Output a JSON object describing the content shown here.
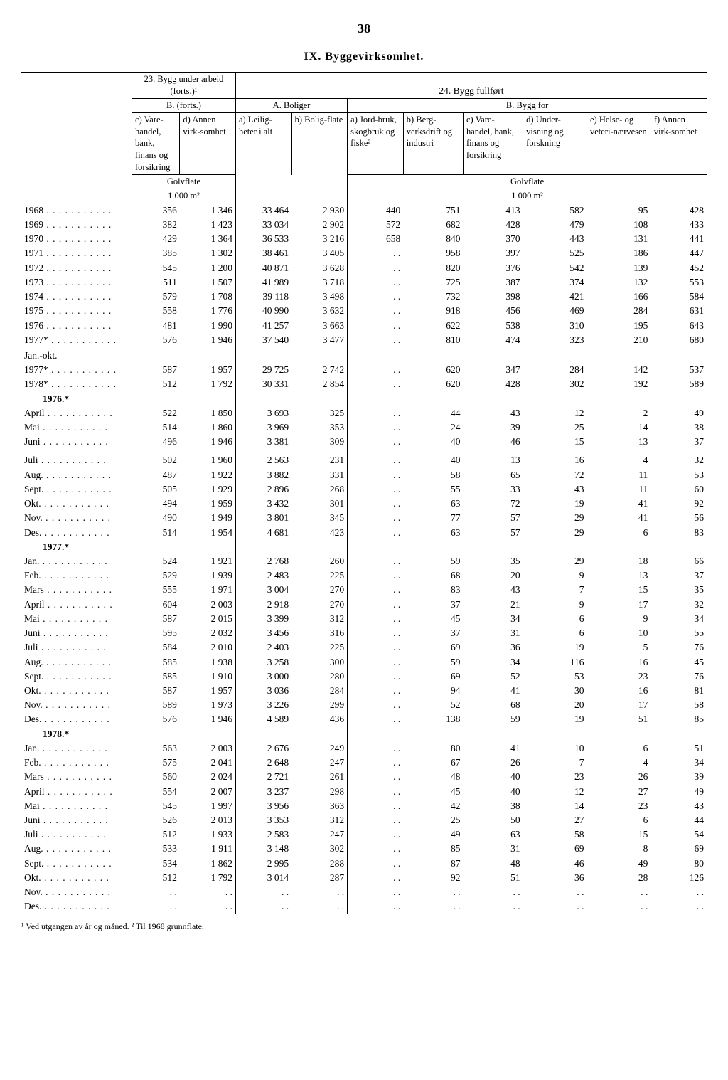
{
  "page_number": "38",
  "chapter_title": "IX. Byggevirksomhet.",
  "header_23": "23. Bygg under arbeid (forts.)¹",
  "header_24": "24. Bygg fullført",
  "header_B_forts": "B. (forts.)",
  "header_A_boliger": "A. Boliger",
  "header_B_byggfor": "B. Bygg for",
  "col_c": "c) Vare-handel, bank, finans og forsikring",
  "col_d": "d) Annen virk-somhet",
  "col_a1": "a) Leilig-heter i alt",
  "col_b1": "b) Bolig-flate",
  "col_a2": "a) Jord-bruk, skogbruk og fiske²",
  "col_b2": "b) Berg-verksdrift og industri",
  "col_c2": "c) Vare-handel, bank, finans og forsikring",
  "col_d2": "d) Under-visning og forskning",
  "col_e2": "e) Helse- og veteri-nærvesen",
  "col_f2": "f) Annen virk-somhet",
  "unit_golvflate": "Golvflate",
  "unit_m2_left": "1 000 m²",
  "unit_m2_right": "1 000 m²",
  "footnote_text": "¹ Ved utgangen av år og måned. ² Til 1968 grunnflate.",
  "rows": [
    {
      "label": "1968",
      "d": [
        "356",
        "1 346",
        "33 464",
        "2 930",
        "440",
        "751",
        "413",
        "582",
        "95",
        "428"
      ]
    },
    {
      "label": "1969",
      "d": [
        "382",
        "1 423",
        "33 034",
        "2 902",
        "572",
        "682",
        "428",
        "479",
        "108",
        "433"
      ]
    },
    {
      "label": "1970",
      "d": [
        "429",
        "1 364",
        "36 533",
        "3 216",
        "658",
        "840",
        "370",
        "443",
        "131",
        "441"
      ]
    },
    {
      "label": "1971",
      "d": [
        "385",
        "1 302",
        "38 461",
        "3 405",
        ". .",
        "958",
        "397",
        "525",
        "186",
        "447"
      ]
    },
    {
      "label": "1972",
      "d": [
        "545",
        "1 200",
        "40 871",
        "3 628",
        ". .",
        "820",
        "376",
        "542",
        "139",
        "452"
      ]
    },
    {
      "label": "1973",
      "d": [
        "511",
        "1 507",
        "41 989",
        "3 718",
        ". .",
        "725",
        "387",
        "374",
        "132",
        "553"
      ]
    },
    {
      "label": "1974",
      "d": [
        "579",
        "1 708",
        "39 118",
        "3 498",
        ". .",
        "732",
        "398",
        "421",
        "166",
        "584"
      ]
    },
    {
      "label": "1975",
      "d": [
        "558",
        "1 776",
        "40 990",
        "3 632",
        ". .",
        "918",
        "456",
        "469",
        "284",
        "631"
      ]
    },
    {
      "label": "1976",
      "d": [
        "481",
        "1 990",
        "41 257",
        "3 663",
        ". .",
        "622",
        "538",
        "310",
        "195",
        "643"
      ]
    },
    {
      "label": "1977*",
      "d": [
        "576",
        "1 946",
        "37 540",
        "3 477",
        ". .",
        "810",
        "474",
        "323",
        "210",
        "680"
      ]
    }
  ],
  "janokt_label": "Jan.-okt.",
  "janokt": [
    {
      "label": "1977*",
      "d": [
        "587",
        "1 957",
        "29 725",
        "2 742",
        ". .",
        "620",
        "347",
        "284",
        "142",
        "537"
      ]
    },
    {
      "label": "1978*",
      "d": [
        "512",
        "1 792",
        "30 331",
        "2 854",
        ". .",
        "620",
        "428",
        "302",
        "192",
        "589"
      ]
    }
  ],
  "y1976_label": "1976.*",
  "y1976": [
    {
      "label": "April",
      "d": [
        "522",
        "1 850",
        "3 693",
        "325",
        ". .",
        "44",
        "43",
        "12",
        "2",
        "49"
      ]
    },
    {
      "label": "Mai",
      "d": [
        "514",
        "1 860",
        "3 969",
        "353",
        ". .",
        "24",
        "39",
        "25",
        "14",
        "38"
      ]
    },
    {
      "label": "Juni",
      "d": [
        "496",
        "1 946",
        "3 381",
        "309",
        ". .",
        "40",
        "46",
        "15",
        "13",
        "37"
      ]
    }
  ],
  "y1976b": [
    {
      "label": "Juli",
      "d": [
        "502",
        "1 960",
        "2 563",
        "231",
        ". .",
        "40",
        "13",
        "16",
        "4",
        "32"
      ]
    },
    {
      "label": "Aug.",
      "d": [
        "487",
        "1 922",
        "3 882",
        "331",
        ". .",
        "58",
        "65",
        "72",
        "11",
        "53"
      ]
    },
    {
      "label": "Sept.",
      "d": [
        "505",
        "1 929",
        "2 896",
        "268",
        ". .",
        "55",
        "33",
        "43",
        "11",
        "60"
      ]
    },
    {
      "label": "Okt.",
      "d": [
        "494",
        "1 959",
        "3 432",
        "301",
        ". .",
        "63",
        "72",
        "19",
        "41",
        "92"
      ]
    },
    {
      "label": "Nov.",
      "d": [
        "490",
        "1 949",
        "3 801",
        "345",
        ". .",
        "77",
        "57",
        "29",
        "41",
        "56"
      ]
    },
    {
      "label": "Des.",
      "d": [
        "514",
        "1 954",
        "4 681",
        "423",
        ". .",
        "63",
        "57",
        "29",
        "6",
        "83"
      ]
    }
  ],
  "y1977_label": "1977.*",
  "y1977": [
    {
      "label": "Jan.",
      "d": [
        "524",
        "1 921",
        "2 768",
        "260",
        ". .",
        "59",
        "35",
        "29",
        "18",
        "66"
      ]
    },
    {
      "label": "Feb.",
      "d": [
        "529",
        "1 939",
        "2 483",
        "225",
        ". .",
        "68",
        "20",
        "9",
        "13",
        "37"
      ]
    },
    {
      "label": "Mars",
      "d": [
        "555",
        "1 971",
        "3 004",
        "270",
        ". .",
        "83",
        "43",
        "7",
        "15",
        "35"
      ]
    },
    {
      "label": "April",
      "d": [
        "604",
        "2 003",
        "2 918",
        "270",
        ". .",
        "37",
        "21",
        "9",
        "17",
        "32"
      ]
    },
    {
      "label": "Mai",
      "d": [
        "587",
        "2 015",
        "3 399",
        "312",
        ". .",
        "45",
        "34",
        "6",
        "9",
        "34"
      ]
    },
    {
      "label": "Juni",
      "d": [
        "595",
        "2 032",
        "3 456",
        "316",
        ". .",
        "37",
        "31",
        "6",
        "10",
        "55"
      ]
    }
  ],
  "y1977b": [
    {
      "label": "Juli",
      "d": [
        "584",
        "2 010",
        "2 403",
        "225",
        ". .",
        "69",
        "36",
        "19",
        "5",
        "76"
      ]
    },
    {
      "label": "Aug.",
      "d": [
        "585",
        "1 938",
        "3 258",
        "300",
        ". .",
        "59",
        "34",
        "116",
        "16",
        "45"
      ]
    },
    {
      "label": "Sept.",
      "d": [
        "585",
        "1 910",
        "3 000",
        "280",
        ". .",
        "69",
        "52",
        "53",
        "23",
        "76"
      ]
    },
    {
      "label": "Okt.",
      "d": [
        "587",
        "1 957",
        "3 036",
        "284",
        ". .",
        "94",
        "41",
        "30",
        "16",
        "81"
      ]
    },
    {
      "label": "Nov.",
      "d": [
        "589",
        "1 973",
        "3 226",
        "299",
        ". .",
        "52",
        "68",
        "20",
        "17",
        "58"
      ]
    },
    {
      "label": "Des.",
      "d": [
        "576",
        "1 946",
        "4 589",
        "436",
        ". .",
        "138",
        "59",
        "19",
        "51",
        "85"
      ]
    }
  ],
  "y1978_label": "1978.*",
  "y1978": [
    {
      "label": "Jan.",
      "d": [
        "563",
        "2 003",
        "2 676",
        "249",
        ". .",
        "80",
        "41",
        "10",
        "6",
        "51"
      ]
    },
    {
      "label": "Feb.",
      "d": [
        "575",
        "2 041",
        "2 648",
        "247",
        ". .",
        "67",
        "26",
        "7",
        "4",
        "34"
      ]
    },
    {
      "label": "Mars",
      "d": [
        "560",
        "2 024",
        "2 721",
        "261",
        ". .",
        "48",
        "40",
        "23",
        "26",
        "39"
      ]
    },
    {
      "label": "April",
      "d": [
        "554",
        "2 007",
        "3 237",
        "298",
        ". .",
        "45",
        "40",
        "12",
        "27",
        "49"
      ]
    },
    {
      "label": "Mai",
      "d": [
        "545",
        "1 997",
        "3 956",
        "363",
        ". .",
        "42",
        "38",
        "14",
        "23",
        "43"
      ]
    },
    {
      "label": "Juni",
      "d": [
        "526",
        "2 013",
        "3 353",
        "312",
        ". .",
        "25",
        "50",
        "27",
        "6",
        "44"
      ]
    }
  ],
  "y1978b": [
    {
      "label": "Juli",
      "d": [
        "512",
        "1 933",
        "2 583",
        "247",
        ". .",
        "49",
        "63",
        "58",
        "15",
        "54"
      ]
    },
    {
      "label": "Aug.",
      "d": [
        "533",
        "1 911",
        "3 148",
        "302",
        ". .",
        "85",
        "31",
        "69",
        "8",
        "69"
      ]
    },
    {
      "label": "Sept.",
      "d": [
        "534",
        "1 862",
        "2 995",
        "288",
        ". .",
        "87",
        "48",
        "46",
        "49",
        "80"
      ]
    },
    {
      "label": "Okt.",
      "d": [
        "512",
        "1 792",
        "3 014",
        "287",
        ". .",
        "92",
        "51",
        "36",
        "28",
        "126"
      ]
    },
    {
      "label": "Nov.",
      "d": [
        ". .",
        ". .",
        ". .",
        ". .",
        ". .",
        ". .",
        ". .",
        ". .",
        ". .",
        ". ."
      ]
    },
    {
      "label": "Des.",
      "d": [
        ". .",
        ". .",
        ". .",
        ". .",
        ". .",
        ". .",
        ". .",
        ". .",
        ". .",
        ". ."
      ]
    }
  ]
}
